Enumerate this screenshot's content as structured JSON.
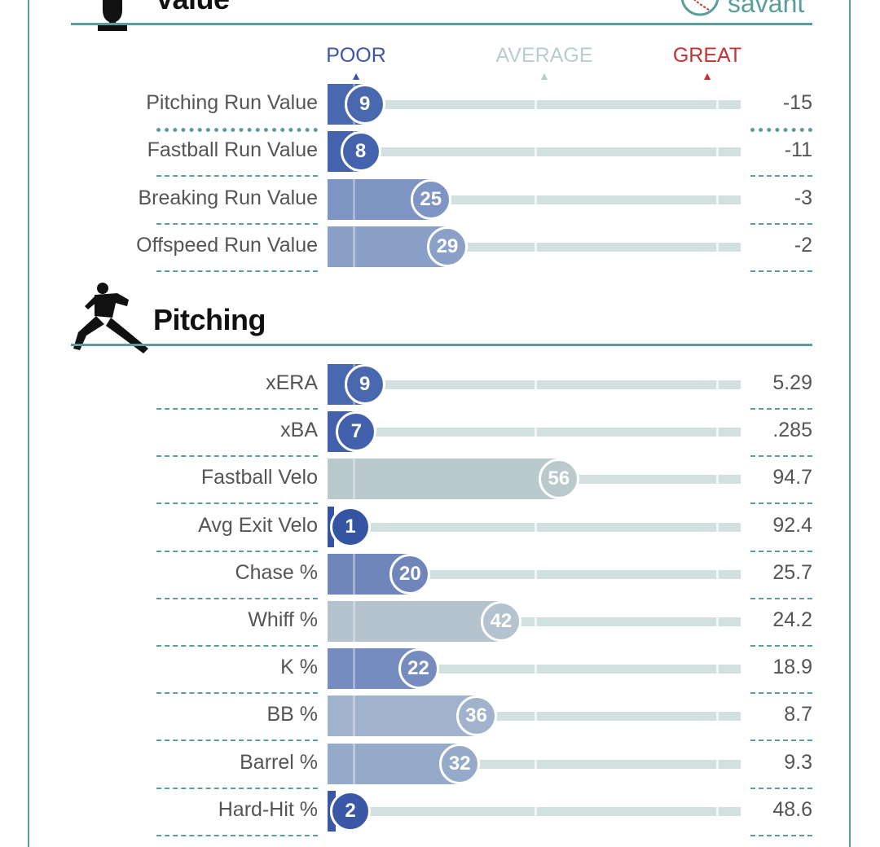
{
  "header": {
    "value_title": "Value",
    "brand": "savant",
    "pitching_title": "Pitching"
  },
  "legend": {
    "poor": "POOR",
    "average": "AVERAGE",
    "great": "GREAT",
    "poor_color": "#3b56a3",
    "average_color": "#b9cdcf",
    "great_color": "#c8312f"
  },
  "icons": {
    "value_section": "trophy-icon",
    "pitching_section": "pitcher-silhouette-icon",
    "brand": "baseball-icon"
  },
  "value_rows": [
    {
      "label": "Pitching Run Value",
      "percentile": 9,
      "value": "-15",
      "color": "#4a68b0"
    },
    {
      "label": "Fastball Run Value",
      "percentile": 8,
      "value": "-11",
      "color": "#4563ad"
    },
    {
      "label": "Breaking Run Value",
      "percentile": 25,
      "value": "-3",
      "color": "#7e94c2"
    },
    {
      "label": "Offspeed Run Value",
      "percentile": 29,
      "value": "-2",
      "color": "#8aa0c6"
    }
  ],
  "pitching_rows": [
    {
      "label": "xERA",
      "percentile": 9,
      "value": "5.29",
      "color": "#4a68b0"
    },
    {
      "label": "xBA",
      "percentile": 7,
      "value": ".285",
      "color": "#4260ab"
    },
    {
      "label": "Fastball Velo",
      "percentile": 56,
      "value": "94.7",
      "color": "#bac9cb"
    },
    {
      "label": "Avg Exit Velo",
      "percentile": 1,
      "value": "92.4",
      "color": "#3555a3"
    },
    {
      "label": "Chase %",
      "percentile": 20,
      "value": "25.7",
      "color": "#7086bb"
    },
    {
      "label": "Whiff %",
      "percentile": 42,
      "value": "24.2",
      "color": "#b4c3ce"
    },
    {
      "label": "K %",
      "percentile": 22,
      "value": "18.9",
      "color": "#768cbe"
    },
    {
      "label": "BB %",
      "percentile": 36,
      "value": "8.7",
      "color": "#a0b2cc"
    },
    {
      "label": "Barrel %",
      "percentile": 32,
      "value": "9.3",
      "color": "#95a9c9"
    },
    {
      "label": "Hard-Hit %",
      "percentile": 2,
      "value": "48.6",
      "color": "#3a58a5"
    }
  ]
}
